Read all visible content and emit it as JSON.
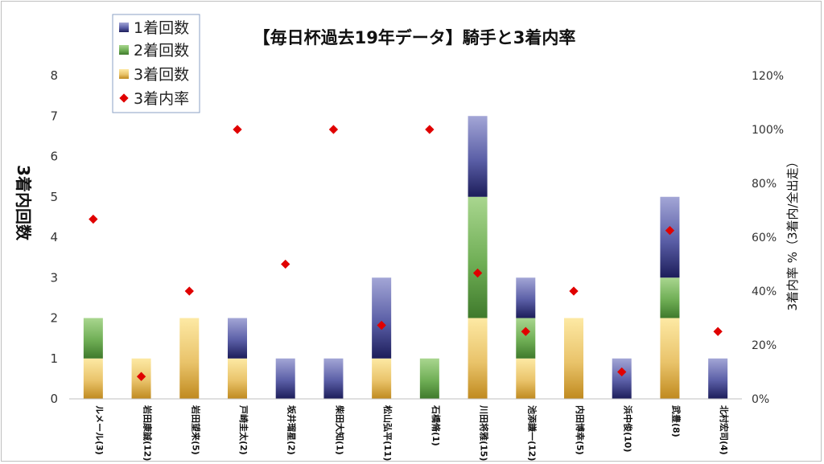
{
  "chart_data": {
    "type": "bar",
    "stacked": true,
    "title": "【毎日杯過去19年データ】騎手と3着内率",
    "ylabel": "3着内回数",
    "ylabel_right": "3着内率 %（3着内/全出走）",
    "ylim": [
      0,
      8
    ],
    "yticks": [
      "0",
      "1",
      "2",
      "3",
      "4",
      "5",
      "6",
      "7",
      "8"
    ],
    "ylim_right": [
      0,
      120
    ],
    "yticks_right": [
      "0%",
      "20%",
      "40%",
      "60%",
      "80%",
      "100%",
      "120%"
    ],
    "grid": false,
    "legend_position": "top-left",
    "categories": [
      "ルメール(3)",
      "岩田康誠(12)",
      "岩田望来(5)",
      "戸崎圭太(2)",
      "坂井瑠星(2)",
      "柴田大知(1)",
      "松山弘平(11)",
      "石橋脩(1)",
      "川田将雅(15)",
      "池添謙一(12)",
      "内田博幸(5)",
      "浜中俊(10)",
      "武豊(8)",
      "北村宏司(4)"
    ],
    "series": [
      {
        "name": "1着回数",
        "values": [
          0,
          0,
          0,
          1,
          1,
          1,
          2,
          0,
          2,
          1,
          0,
          1,
          2,
          1
        ],
        "color": "#2e2f78"
      },
      {
        "name": "2着回数",
        "values": [
          1,
          0,
          0,
          0,
          0,
          0,
          0,
          1,
          3,
          1,
          0,
          0,
          1,
          0
        ],
        "color": "#4e8a3a"
      },
      {
        "name": "3着回数",
        "values": [
          1,
          1,
          2,
          1,
          0,
          0,
          1,
          0,
          2,
          1,
          2,
          0,
          2,
          0
        ],
        "color": "#c8962a"
      },
      {
        "name": "3着内率",
        "type": "scatter",
        "axis": "right",
        "values": [
          66.7,
          8.3,
          40,
          100,
          50,
          100,
          27.3,
          100,
          46.7,
          25,
          40,
          10,
          62.5,
          25
        ],
        "color": "#e00000"
      }
    ]
  }
}
